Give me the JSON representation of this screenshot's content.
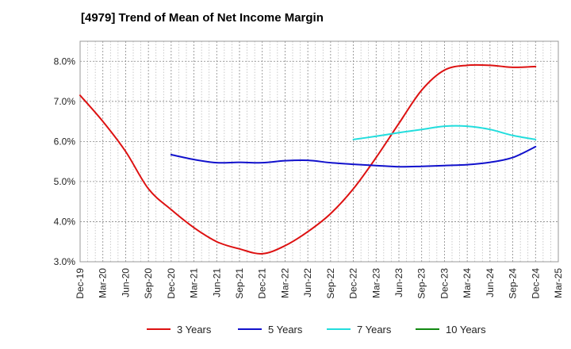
{
  "chart_data": {
    "type": "line",
    "title": "[4979]  Trend of Mean of Net Income Margin",
    "xlabel": "",
    "ylabel": "",
    "x": [
      "Dec-19",
      "Mar-20",
      "Jun-20",
      "Sep-20",
      "Dec-20",
      "Mar-21",
      "Jun-21",
      "Sep-21",
      "Dec-21",
      "Mar-22",
      "Jun-22",
      "Sep-22",
      "Dec-22",
      "Mar-23",
      "Jun-23",
      "Sep-23",
      "Dec-23",
      "Mar-24",
      "Jun-24",
      "Sep-24",
      "Dec-24",
      "Mar-25"
    ],
    "ylim": [
      3.0,
      8.5
    ],
    "yticks": [
      3.0,
      4.0,
      5.0,
      6.0,
      7.0,
      8.0
    ],
    "ytick_labels": [
      "3.0%",
      "4.0%",
      "5.0%",
      "6.0%",
      "7.0%",
      "8.0%"
    ],
    "grid": true,
    "legend_position": "bottom",
    "series": [
      {
        "name": "3 Years",
        "color": "#dd1111",
        "values": [
          7.15,
          6.5,
          5.75,
          4.82,
          4.3,
          3.85,
          3.5,
          3.32,
          3.2,
          3.4,
          3.75,
          4.2,
          4.82,
          5.6,
          6.45,
          7.28,
          7.78,
          7.9,
          7.9,
          7.85,
          7.87,
          null
        ]
      },
      {
        "name": "5 Years",
        "color": "#1111cc",
        "values": [
          null,
          null,
          null,
          null,
          5.67,
          5.55,
          5.47,
          5.48,
          5.47,
          5.52,
          5.53,
          5.47,
          5.43,
          5.4,
          5.37,
          5.38,
          5.4,
          5.42,
          5.48,
          5.6,
          5.87,
          null
        ]
      },
      {
        "name": "7 Years",
        "color": "#22dddd",
        "values": [
          null,
          null,
          null,
          null,
          null,
          null,
          null,
          null,
          null,
          null,
          null,
          null,
          6.05,
          6.13,
          6.22,
          6.3,
          6.38,
          6.38,
          6.3,
          6.15,
          6.05,
          null
        ]
      },
      {
        "name": "10 Years",
        "color": "#118811",
        "values": [
          null,
          null,
          null,
          null,
          null,
          null,
          null,
          null,
          null,
          null,
          null,
          null,
          null,
          null,
          null,
          null,
          null,
          null,
          null,
          null,
          null,
          null
        ]
      }
    ]
  }
}
